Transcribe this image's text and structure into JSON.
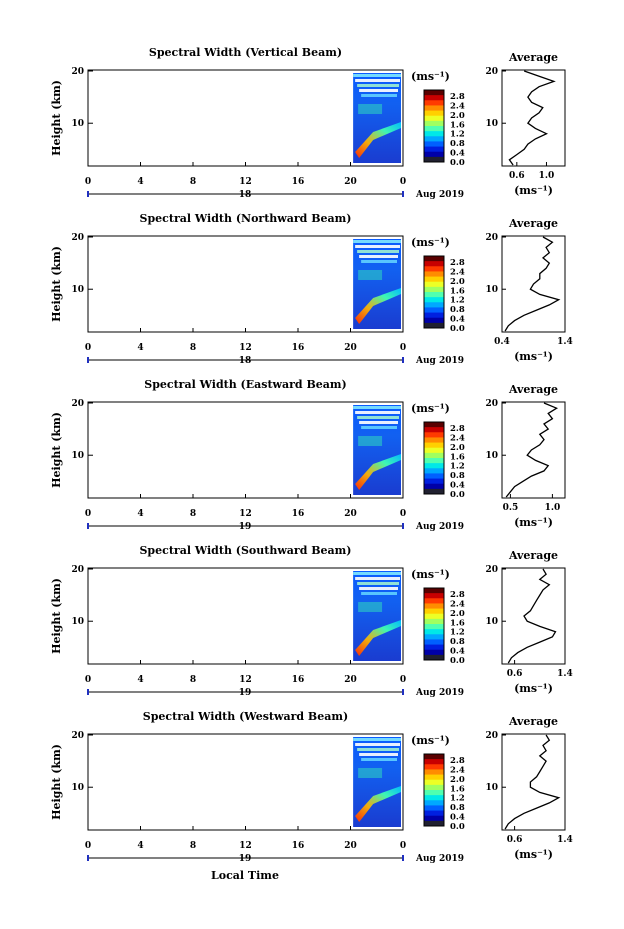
{
  "figure": {
    "xlabel": "Local Time",
    "date_label": "Aug 2019",
    "avg_title": "Average",
    "unit_label": "(ms⁻¹)",
    "colorbar_ticks": [
      "2.8",
      "2.4",
      "2.0",
      "1.6",
      "1.2",
      "0.8",
      "0.4",
      "0.0"
    ],
    "colorbar_colors": [
      "#5a0000",
      "#c80000",
      "#ff3a00",
      "#ff8c00",
      "#ffd000",
      "#ecff26",
      "#a0ff60",
      "#50ffb0",
      "#00e8e8",
      "#00a8ff",
      "#0060ff",
      "#0020e0",
      "#0000a8",
      "#202030"
    ]
  },
  "chart_data": [
    {
      "type": "heatmap",
      "title": "Spectral Width (Vertical Beam)",
      "ylabel": "Height (km)",
      "x_ticks": [
        "0",
        "4",
        "8",
        "12",
        "16",
        "20",
        "0"
      ],
      "day_label": "18",
      "avg_x_ticks": [
        "0.6",
        "1.0"
      ],
      "avg_xlim": [
        0.4,
        1.25
      ],
      "avg_profile": [
        [
          2,
          0.55
        ],
        [
          3,
          0.5
        ],
        [
          4,
          0.6
        ],
        [
          5,
          0.7
        ],
        [
          6,
          0.75
        ],
        [
          7,
          0.85
        ],
        [
          8,
          1.0
        ],
        [
          9,
          0.85
        ],
        [
          10,
          0.75
        ],
        [
          11,
          0.8
        ],
        [
          12,
          0.9
        ],
        [
          13,
          0.95
        ],
        [
          14,
          0.8
        ],
        [
          15,
          0.75
        ],
        [
          16,
          0.8
        ],
        [
          17,
          0.9
        ],
        [
          18,
          1.1
        ],
        [
          19,
          0.9
        ],
        [
          20,
          0.7
        ]
      ]
    },
    {
      "type": "heatmap",
      "title": "Spectral Width (Northward Beam)",
      "ylabel": "Height (km)",
      "x_ticks": [
        "0",
        "4",
        "8",
        "12",
        "16",
        "20",
        "0"
      ],
      "day_label": "18",
      "avg_x_ticks": [
        "0.4",
        "1.4"
      ],
      "avg_xlim": [
        0.4,
        1.4
      ],
      "avg_profile": [
        [
          2,
          0.45
        ],
        [
          3,
          0.5
        ],
        [
          4,
          0.6
        ],
        [
          5,
          0.75
        ],
        [
          6,
          0.95
        ],
        [
          7,
          1.15
        ],
        [
          8,
          1.3
        ],
        [
          9,
          1.0
        ],
        [
          10,
          0.85
        ],
        [
          11,
          0.9
        ],
        [
          12,
          1.0
        ],
        [
          13,
          1.0
        ],
        [
          14,
          1.1
        ],
        [
          15,
          1.15
        ],
        [
          16,
          1.05
        ],
        [
          17,
          1.15
        ],
        [
          18,
          1.1
        ],
        [
          19,
          1.2
        ],
        [
          20,
          1.05
        ]
      ]
    },
    {
      "type": "heatmap",
      "title": "Spectral Width (Eastward Beam)",
      "ylabel": "Height (km)",
      "x_ticks": [
        "0",
        "4",
        "8",
        "12",
        "16",
        "20",
        "0"
      ],
      "day_label": "19",
      "avg_x_ticks": [
        "0.5",
        "1.0"
      ],
      "avg_xlim": [
        0.4,
        1.15
      ],
      "avg_profile": [
        [
          2,
          0.45
        ],
        [
          3,
          0.5
        ],
        [
          4,
          0.55
        ],
        [
          5,
          0.65
        ],
        [
          6,
          0.75
        ],
        [
          7,
          0.9
        ],
        [
          8,
          0.95
        ],
        [
          9,
          0.8
        ],
        [
          10,
          0.7
        ],
        [
          11,
          0.75
        ],
        [
          12,
          0.85
        ],
        [
          13,
          0.9
        ],
        [
          14,
          0.85
        ],
        [
          15,
          0.95
        ],
        [
          16,
          0.9
        ],
        [
          17,
          1.0
        ],
        [
          18,
          0.95
        ],
        [
          19,
          1.05
        ],
        [
          20,
          0.9
        ]
      ]
    },
    {
      "type": "heatmap",
      "title": "Spectral Width (Southward Beam)",
      "ylabel": "Height (km)",
      "x_ticks": [
        "0",
        "4",
        "8",
        "12",
        "16",
        "20",
        "0"
      ],
      "day_label": "19",
      "avg_x_ticks": [
        "0.6",
        "1.4"
      ],
      "avg_xlim": [
        0.4,
        1.4
      ],
      "avg_profile": [
        [
          2,
          0.5
        ],
        [
          3,
          0.55
        ],
        [
          4,
          0.65
        ],
        [
          5,
          0.8
        ],
        [
          6,
          1.0
        ],
        [
          7,
          1.2
        ],
        [
          8,
          1.25
        ],
        [
          9,
          1.0
        ],
        [
          10,
          0.8
        ],
        [
          11,
          0.75
        ],
        [
          12,
          0.85
        ],
        [
          13,
          0.9
        ],
        [
          14,
          0.95
        ],
        [
          15,
          1.0
        ],
        [
          16,
          1.05
        ],
        [
          17,
          1.15
        ],
        [
          18,
          1.0
        ],
        [
          19,
          1.1
        ],
        [
          20,
          1.05
        ]
      ]
    },
    {
      "type": "heatmap",
      "title": "Spectral Width (Westward Beam)",
      "ylabel": "Height (km)",
      "x_ticks": [
        "0",
        "4",
        "8",
        "12",
        "16",
        "20",
        "0"
      ],
      "day_label": "19",
      "avg_x_ticks": [
        "0.6",
        "1.4"
      ],
      "avg_xlim": [
        0.4,
        1.4
      ],
      "avg_profile": [
        [
          2,
          0.45
        ],
        [
          3,
          0.5
        ],
        [
          4,
          0.6
        ],
        [
          5,
          0.75
        ],
        [
          6,
          0.95
        ],
        [
          7,
          1.15
        ],
        [
          8,
          1.3
        ],
        [
          9,
          1.0
        ],
        [
          10,
          0.85
        ],
        [
          11,
          0.85
        ],
        [
          12,
          0.95
        ],
        [
          13,
          1.0
        ],
        [
          14,
          1.05
        ],
        [
          15,
          1.1
        ],
        [
          16,
          1.0
        ],
        [
          17,
          1.1
        ],
        [
          18,
          1.05
        ],
        [
          19,
          1.15
        ],
        [
          20,
          1.1
        ]
      ]
    }
  ]
}
